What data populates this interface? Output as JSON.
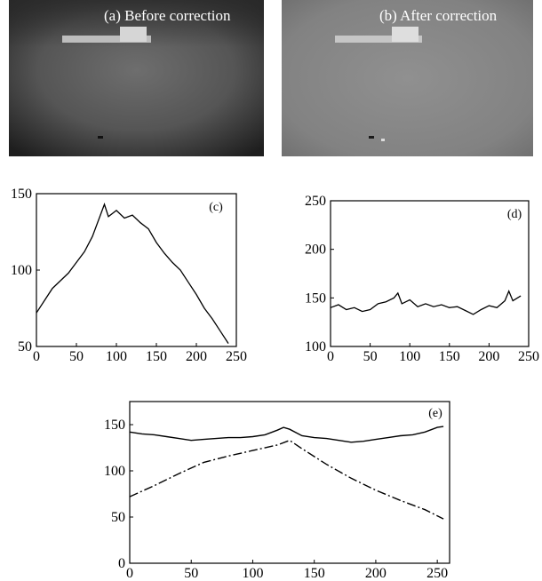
{
  "photos": [
    {
      "label": "(a)  Before correction",
      "tone": "before"
    },
    {
      "label": "(b)  After correction",
      "tone": "after"
    }
  ],
  "chart_data": [
    {
      "type": "line",
      "panel_label": "(c)",
      "xlim": [
        0,
        250
      ],
      "ylim": [
        50,
        150
      ],
      "x_ticks": [
        0,
        50,
        100,
        150,
        200,
        250
      ],
      "y_ticks": [
        50,
        100,
        150
      ],
      "series": [
        {
          "style": "solid",
          "x": [
            0,
            10,
            20,
            30,
            40,
            50,
            60,
            70,
            80,
            85,
            90,
            100,
            110,
            120,
            130,
            140,
            150,
            160,
            170,
            180,
            190,
            200,
            210,
            220,
            230,
            240
          ],
          "y": [
            72,
            80,
            88,
            93,
            98,
            105,
            112,
            122,
            136,
            143,
            135,
            139,
            134,
            136,
            131,
            127,
            118,
            111,
            105,
            100,
            92,
            84,
            75,
            68,
            60,
            52
          ]
        }
      ]
    },
    {
      "type": "line",
      "panel_label": "(d)",
      "xlim": [
        0,
        250
      ],
      "ylim": [
        100,
        250
      ],
      "x_ticks": [
        0,
        50,
        100,
        150,
        200,
        250
      ],
      "y_ticks": [
        100,
        150,
        200,
        250
      ],
      "series": [
        {
          "style": "solid",
          "x": [
            0,
            10,
            20,
            30,
            40,
            50,
            60,
            70,
            80,
            85,
            90,
            100,
            110,
            120,
            130,
            140,
            150,
            160,
            170,
            180,
            190,
            200,
            210,
            220,
            225,
            230,
            240
          ],
          "y": [
            140,
            143,
            138,
            140,
            136,
            138,
            144,
            146,
            150,
            155,
            144,
            148,
            141,
            144,
            141,
            143,
            140,
            141,
            137,
            133,
            138,
            142,
            140,
            147,
            157,
            147,
            152
          ]
        }
      ]
    },
    {
      "type": "line",
      "panel_label": "(e)",
      "xlim": [
        0,
        260
      ],
      "ylim": [
        0,
        175
      ],
      "x_ticks": [
        0,
        50,
        100,
        150,
        200,
        250
      ],
      "y_ticks": [
        0,
        50,
        100,
        150
      ],
      "series": [
        {
          "style": "solid",
          "x": [
            0,
            10,
            20,
            30,
            40,
            50,
            60,
            70,
            80,
            90,
            100,
            110,
            120,
            125,
            130,
            140,
            150,
            160,
            170,
            180,
            190,
            200,
            210,
            220,
            230,
            240,
            250,
            255
          ],
          "y": [
            142,
            140,
            139,
            137,
            135,
            133,
            134,
            135,
            136,
            136,
            137,
            139,
            144,
            147,
            145,
            138,
            136,
            135,
            133,
            131,
            132,
            134,
            136,
            138,
            139,
            142,
            147,
            148
          ]
        },
        {
          "style": "dash-dot",
          "x": [
            0,
            20,
            40,
            60,
            80,
            100,
            120,
            130,
            140,
            160,
            180,
            200,
            220,
            240,
            255
          ],
          "y": [
            72,
            84,
            97,
            109,
            116,
            122,
            128,
            133,
            124,
            107,
            92,
            79,
            68,
            58,
            48
          ]
        }
      ]
    }
  ]
}
